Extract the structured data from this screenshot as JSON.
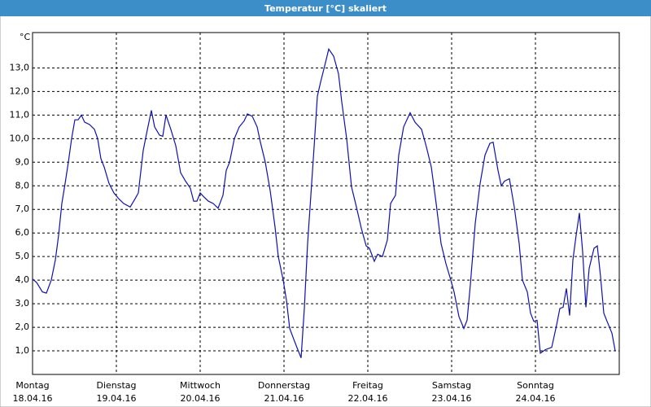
{
  "chart_data": {
    "type": "line",
    "title": "Temperatur [°C] skaliert",
    "y_unit": "°C",
    "x": [
      0,
      0.049,
      0.117,
      0.165,
      0.223,
      0.272,
      0.311,
      0.35,
      0.388,
      0.427,
      0.466,
      0.505,
      0.544,
      0.583,
      0.621,
      0.68,
      0.738,
      0.777,
      0.816,
      0.854,
      0.913,
      0.971,
      1.029,
      1.087,
      1.165,
      1.223,
      1.262,
      1.32,
      1.359,
      1.417,
      1.456,
      1.515,
      1.553,
      1.592,
      1.65,
      1.709,
      1.767,
      1.825,
      1.883,
      1.922,
      1.961,
      2.0,
      2.039,
      2.097,
      2.155,
      2.214,
      2.272,
      2.311,
      2.35,
      2.408,
      2.466,
      2.524,
      2.563,
      2.621,
      2.68,
      2.718,
      2.777,
      2.835,
      2.893,
      2.932,
      2.99,
      3.029,
      3.068,
      3.126,
      3.165,
      3.204,
      3.243,
      3.282,
      3.32,
      3.359,
      3.398,
      3.437,
      3.476,
      3.534,
      3.592,
      3.65,
      3.689,
      3.748,
      3.806,
      3.864,
      3.922,
      3.981,
      4.019,
      4.078,
      4.117,
      4.175,
      4.233,
      4.272,
      4.33,
      4.369,
      4.427,
      4.505,
      4.563,
      4.641,
      4.699,
      4.757,
      4.816,
      4.874,
      4.932,
      4.99,
      5.029,
      5.087,
      5.146,
      5.184,
      5.223,
      5.282,
      5.34,
      5.398,
      5.456,
      5.495,
      5.553,
      5.592,
      5.631,
      5.689,
      5.748,
      5.806,
      5.845,
      5.903,
      5.942,
      5.981,
      6.019,
      6.058,
      6.117,
      6.194,
      6.252,
      6.291,
      6.33,
      6.369,
      6.408,
      6.447,
      6.485,
      6.524,
      6.563,
      6.602,
      6.641,
      6.699,
      6.738,
      6.777,
      6.816,
      6.854,
      6.913,
      6.951
    ],
    "series": [
      {
        "name": "Temperatur",
        "color": "#1010b0",
        "values": [
          4.05,
          3.9,
          3.5,
          3.45,
          4.0,
          4.85,
          5.9,
          7.25,
          8.1,
          9.0,
          10.0,
          10.8,
          10.8,
          11.0,
          10.7,
          10.6,
          10.4,
          10.0,
          9.15,
          8.8,
          8.1,
          7.7,
          7.45,
          7.25,
          7.1,
          7.45,
          7.7,
          9.5,
          10.2,
          11.2,
          10.5,
          10.15,
          10.1,
          11.0,
          10.4,
          9.7,
          8.55,
          8.2,
          7.9,
          7.35,
          7.35,
          7.7,
          7.55,
          7.35,
          7.25,
          7.05,
          7.6,
          8.65,
          9.0,
          10.0,
          10.5,
          10.75,
          11.05,
          10.95,
          10.5,
          9.85,
          9.0,
          7.8,
          6.25,
          5.0,
          4.0,
          3.15,
          1.95,
          1.4,
          1.05,
          0.7,
          2.8,
          5.55,
          7.6,
          9.65,
          11.8,
          12.4,
          12.95,
          13.8,
          13.5,
          12.75,
          11.55,
          10.0,
          7.95,
          7.1,
          6.2,
          5.45,
          5.35,
          4.8,
          5.1,
          5.0,
          5.7,
          7.25,
          7.6,
          9.3,
          10.5,
          11.1,
          10.7,
          10.4,
          9.65,
          8.8,
          7.25,
          5.55,
          4.7,
          4.0,
          3.5,
          2.45,
          1.95,
          2.3,
          3.8,
          6.4,
          8.1,
          9.3,
          9.8,
          9.85,
          8.65,
          8.0,
          8.2,
          8.3,
          7.1,
          5.55,
          4.0,
          3.5,
          2.6,
          2.25,
          2.3,
          0.9,
          1.05,
          1.15,
          2.1,
          2.8,
          2.85,
          3.65,
          2.5,
          4.85,
          5.9,
          6.85,
          5.2,
          2.85,
          4.5,
          5.35,
          5.45,
          4.15,
          2.6,
          2.25,
          1.75,
          1.0
        ]
      }
    ],
    "xlim": [
      0,
      7
    ],
    "xticks": [
      {
        "value": 0,
        "label": "Montag"
      },
      {
        "value": 1,
        "label": "Dienstag"
      },
      {
        "value": 2,
        "label": "Mittwoch"
      },
      {
        "value": 3,
        "label": "Donnerstag"
      },
      {
        "value": 4,
        "label": "Freitag"
      },
      {
        "value": 5,
        "label": "Samstag"
      },
      {
        "value": 6,
        "label": "Sonntag"
      }
    ],
    "xtick_dates": [
      "18.04.16",
      "19.04.16",
      "20.04.16",
      "21.04.16",
      "22.04.16",
      "23.04.16",
      "24.04.16"
    ],
    "ylim": [
      0,
      14.5
    ],
    "yticks": [
      {
        "value": 1,
        "label": "1,0"
      },
      {
        "value": 2,
        "label": "2,0"
      },
      {
        "value": 3,
        "label": "3,0"
      },
      {
        "value": 4,
        "label": "4,0"
      },
      {
        "value": 5,
        "label": "5,0"
      },
      {
        "value": 6,
        "label": "6,0"
      },
      {
        "value": 7,
        "label": "7,0"
      },
      {
        "value": 8,
        "label": "8,0"
      },
      {
        "value": 9,
        "label": "9,0"
      },
      {
        "value": 10,
        "label": "10,0"
      },
      {
        "value": 11,
        "label": "11,0"
      },
      {
        "value": 12,
        "label": "12,0"
      },
      {
        "value": 13,
        "label": "13,0"
      }
    ],
    "grid": true
  }
}
